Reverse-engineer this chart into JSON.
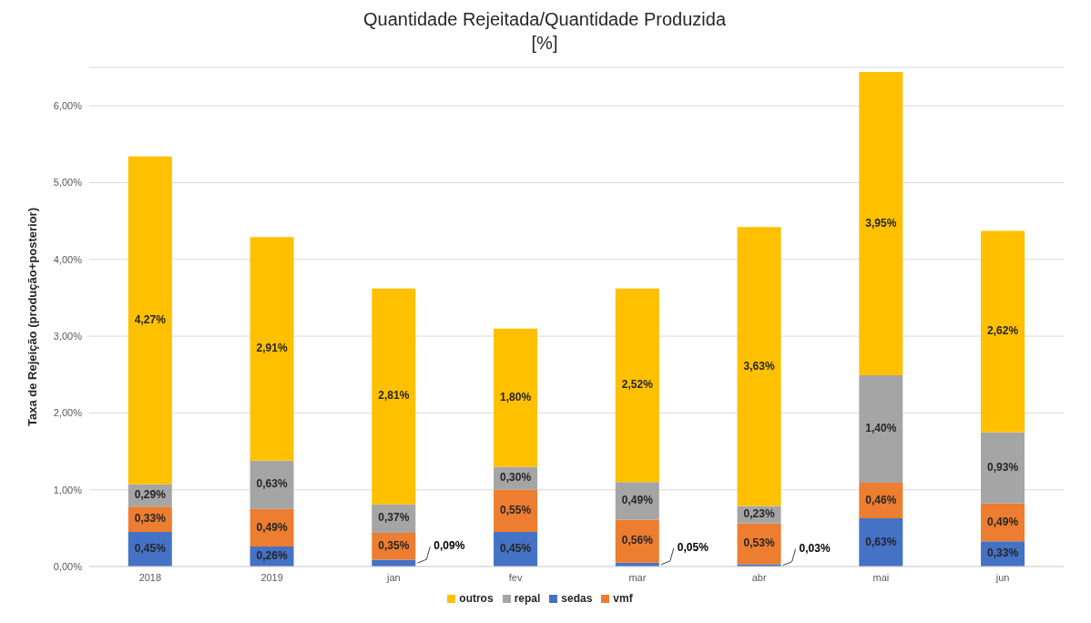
{
  "chart_data": {
    "type": "bar",
    "title": "Quantidade Rejeitada/Quantidade Produzida",
    "subtitle": "[%]",
    "ylabel": "Taxa de Rejeição (produção+posterior)",
    "categories": [
      "2018",
      "2019",
      "jan",
      "fev",
      "mar",
      "abr",
      "mai",
      "jun"
    ],
    "stacked": true,
    "grid": "y",
    "legend": "bottom",
    "ylim": [
      0,
      6.5
    ],
    "yticks": [
      {
        "value": 0,
        "label": "0,00%"
      },
      {
        "value": 1,
        "label": "1,00%"
      },
      {
        "value": 2,
        "label": "2,00%"
      },
      {
        "value": 3,
        "label": "3,00%"
      },
      {
        "value": 4,
        "label": "4,00%"
      },
      {
        "value": 5,
        "label": "5,00%"
      },
      {
        "value": 6,
        "label": "6,00%"
      }
    ],
    "series": [
      {
        "name": "sedas",
        "color": "#4472c4",
        "values": [
          0.45,
          0.26,
          0.09,
          0.45,
          0.05,
          0.03,
          0.63,
          0.33
        ],
        "value_labels": [
          "0,45%",
          "0,26%",
          "0,09%",
          "0,45%",
          "0,05%",
          "0,03%",
          "0,63%",
          "0,33%"
        ]
      },
      {
        "name": "vmf",
        "color": "#ed7d31",
        "values": [
          0.33,
          0.49,
          0.35,
          0.55,
          0.56,
          0.53,
          0.46,
          0.49
        ],
        "value_labels": [
          "0,33%",
          "0,49%",
          "0,35%",
          "0,55%",
          "0,56%",
          "0,53%",
          "0,46%",
          "0,49%"
        ]
      },
      {
        "name": "repal",
        "color": "#a5a5a5",
        "values": [
          0.29,
          0.63,
          0.37,
          0.3,
          0.49,
          0.23,
          1.4,
          0.93
        ],
        "value_labels": [
          "0,29%",
          "0,63%",
          "0,37%",
          "0,30%",
          "0,49%",
          "0,23%",
          "1,40%",
          "0,93%"
        ]
      },
      {
        "name": "outros",
        "color": "#ffc000",
        "values": [
          4.27,
          2.91,
          2.81,
          1.8,
          2.52,
          3.63,
          3.95,
          2.62
        ],
        "value_labels": [
          "4,27%",
          "2,91%",
          "2,81%",
          "1,80%",
          "2,52%",
          "3,63%",
          "3,95%",
          "2,62%"
        ]
      }
    ]
  }
}
